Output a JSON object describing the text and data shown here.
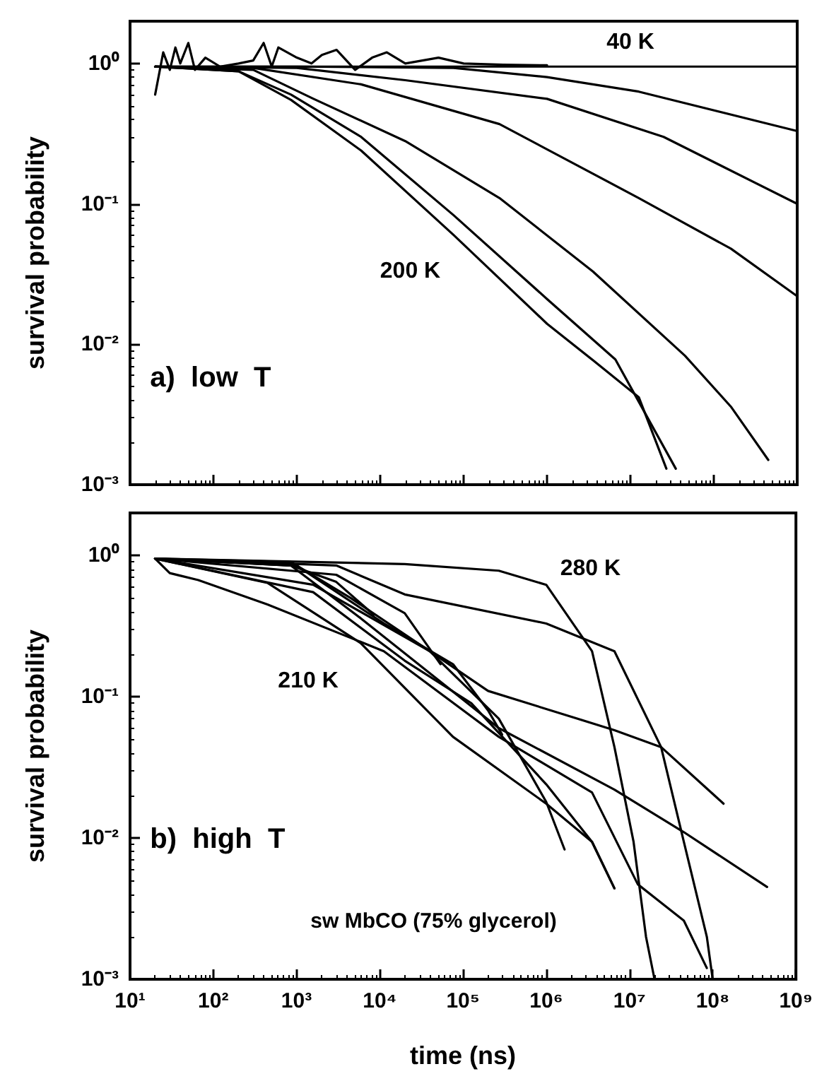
{
  "chart_data": [
    {
      "type": "line",
      "ylabel": "survival probability",
      "log": "xy",
      "grid": false,
      "marker": "none",
      "line_style": "solid",
      "tick_labels": "y",
      "xlim": [
        10,
        1000000000
      ],
      "ylim": [
        0.001,
        2
      ],
      "xticks": [
        {
          "value": 10,
          "label": null
        },
        {
          "value": 100,
          "label": null
        },
        {
          "value": 1000,
          "label": null
        },
        {
          "value": 10000,
          "label": null
        },
        {
          "value": 100000,
          "label": null
        },
        {
          "value": 1000000,
          "label": null
        },
        {
          "value": 10000000,
          "label": null
        },
        {
          "value": 100000000,
          "label": null
        },
        {
          "value": 1000000000,
          "label": null
        }
      ],
      "yticks": [
        {
          "value": 0.001,
          "label": "10⁻³"
        },
        {
          "value": 0.01,
          "label": "10⁻²"
        },
        {
          "value": 0.1,
          "label": "10⁻¹"
        },
        {
          "value": 1,
          "label": "10⁰"
        }
      ],
      "annotations": [
        "a)  low  T",
        "40 K",
        "200 K"
      ],
      "series": [
        {
          "color": "#000000",
          "x": [
            20,
            25,
            30,
            35,
            40,
            50,
            60,
            80,
            120,
            200,
            300,
            400,
            500,
            600,
            1000,
            1500,
            2000,
            3000,
            5000,
            8000,
            12000,
            20000,
            50000,
            100000,
            300000,
            1000000
          ],
          "values": [
            0.6,
            1.2,
            0.9,
            1.3,
            1.0,
            1.4,
            0.9,
            1.1,
            0.95,
            1.0,
            1.05,
            1.4,
            0.95,
            1.3,
            1.1,
            1.0,
            1.15,
            1.25,
            0.9,
            1.1,
            1.2,
            1.0,
            1.1,
            1.0,
            0.98,
            0.97
          ]
        },
        {
          "color": "#000000",
          "x": [
            20,
            1000,
            1000000,
            1000000000
          ],
          "values": [
            0.95,
            0.95,
            0.95,
            0.95
          ]
        },
        {
          "color": "#000000",
          "x": [
            20,
            1000,
            75860,
            1000000,
            12600000,
            1000000000
          ],
          "values": [
            0.95,
            0.95,
            0.93,
            0.8,
            0.63,
            0.33
          ]
        },
        {
          "color": "#000000",
          "x": [
            20,
            1000,
            19950,
            1000000,
            25000000,
            1000000000
          ],
          "values": [
            0.95,
            0.93,
            0.76,
            0.56,
            0.3,
            0.1
          ]
        },
        {
          "color": "#000000",
          "x": [
            20,
            300,
            5890,
            269200,
            12600000,
            160000000,
            1000000000
          ],
          "values": [
            0.95,
            0.93,
            0.71,
            0.37,
            0.11,
            0.048,
            0.022
          ]
        },
        {
          "color": "#000000",
          "x": [
            20,
            300,
            1585,
            19950,
            269200,
            3550000,
            45000000,
            160000000,
            450000000
          ],
          "values": [
            0.95,
            0.9,
            0.56,
            0.28,
            0.11,
            0.033,
            0.0083,
            0.0036,
            0.0015
          ]
        },
        {
          "color": "#000000",
          "x": [
            20,
            200,
            851,
            5890,
            75860,
            1000000,
            6600000,
            35000000
          ],
          "values": [
            0.95,
            0.88,
            0.6,
            0.3,
            0.083,
            0.021,
            0.0078,
            0.0013
          ]
        },
        {
          "color": "#000000",
          "x": [
            20,
            200,
            851,
            5890,
            75860,
            1000000,
            3550000,
            12600000,
            27000000
          ],
          "values": [
            0.95,
            0.88,
            0.55,
            0.24,
            0.06,
            0.014,
            0.0077,
            0.0042,
            0.0013
          ]
        }
      ]
    },
    {
      "type": "line",
      "xlabel": "time (ns)",
      "ylabel": "survival probability",
      "log": "xy",
      "grid": false,
      "marker": "none",
      "line_style": "solid",
      "xlim": [
        10,
        1000000000
      ],
      "ylim": [
        0.001,
        2
      ],
      "xticks": [
        {
          "value": 10,
          "label": "10¹"
        },
        {
          "value": 100,
          "label": "10²"
        },
        {
          "value": 1000,
          "label": "10³"
        },
        {
          "value": 10000,
          "label": "10⁴"
        },
        {
          "value": 100000,
          "label": "10⁵"
        },
        {
          "value": 1000000,
          "label": "10⁶"
        },
        {
          "value": 10000000,
          "label": "10⁷"
        },
        {
          "value": 100000000,
          "label": "10⁸"
        },
        {
          "value": 1000000000,
          "label": "10⁹"
        }
      ],
      "yticks": [
        {
          "value": 0.001,
          "label": "10⁻³"
        },
        {
          "value": 0.01,
          "label": "10⁻²"
        },
        {
          "value": 0.1,
          "label": "10⁻¹"
        },
        {
          "value": 1,
          "label": "10⁰"
        }
      ],
      "annotations": [
        "b)  high  T",
        "sw MbCO (75% glycerol)",
        "280 K",
        "210 K"
      ],
      "series": [
        {
          "color": "#000000",
          "x": [
            20,
            19950,
            269200,
            1000000,
            3550000,
            6600000,
            11200000,
            15800000,
            20000000
          ],
          "values": [
            0.95,
            0.87,
            0.78,
            0.62,
            0.21,
            0.044,
            0.0094,
            0.002,
            0.001
          ]
        },
        {
          "color": "#000000",
          "x": [
            20,
            3000,
            19950,
            1000000,
            6600000,
            24000000,
            45000000,
            85000000,
            100000000
          ],
          "values": [
            0.95,
            0.85,
            0.53,
            0.33,
            0.21,
            0.044,
            0.0094,
            0.002,
            0.001
          ]
        },
        {
          "color": "#000000",
          "x": [
            20,
            851,
            4470,
            39800,
            200000,
            6600000,
            24000000,
            135000000
          ],
          "values": [
            0.95,
            0.9,
            0.5,
            0.21,
            0.11,
            0.058,
            0.044,
            0.0175
          ]
        },
        {
          "color": "#000000",
          "x": [
            20,
            851,
            5890,
            269200,
            6600000,
            45000000,
            450000000
          ],
          "values": [
            0.95,
            0.85,
            0.36,
            0.06,
            0.022,
            0.011,
            0.0045
          ]
        },
        {
          "color": "#000000",
          "x": [
            20,
            30,
            66,
            447,
            11200,
            269200,
            3550000,
            12600000,
            45000000,
            85000000
          ],
          "values": [
            0.95,
            0.75,
            0.67,
            0.45,
            0.21,
            0.052,
            0.021,
            0.0047,
            0.0026,
            0.0012
          ]
        },
        {
          "color": "#000000",
          "x": [
            20,
            851,
            3000,
            8500
          ],
          "values": [
            0.95,
            0.85,
            0.65,
            0.38
          ]
        },
        {
          "color": "#000000",
          "x": [
            20,
            3000,
            19950,
            53700
          ],
          "values": [
            0.95,
            0.73,
            0.39,
            0.17
          ]
        },
        {
          "color": "#000000",
          "x": [
            20,
            1000,
            11200,
            75860,
            200000,
            295000
          ],
          "values": [
            0.95,
            0.85,
            0.33,
            0.17,
            0.08,
            0.054
          ]
        },
        {
          "color": "#000000",
          "x": [
            20,
            1585,
            39800,
            269200,
            1000000,
            1660000
          ],
          "values": [
            0.95,
            0.62,
            0.21,
            0.07,
            0.018,
            0.0083
          ]
        },
        {
          "color": "#000000",
          "x": [
            20,
            1585,
            19950,
            126000,
            1000000,
            3550000,
            6600000
          ],
          "values": [
            0.95,
            0.55,
            0.18,
            0.09,
            0.024,
            0.0094,
            0.0044
          ]
        },
        {
          "color": "#000000",
          "x": [
            20,
            447,
            5890,
            75860,
            1000000,
            3550000,
            6600000
          ],
          "values": [
            0.95,
            0.64,
            0.24,
            0.052,
            0.0175,
            0.0094,
            0.0044
          ]
        }
      ]
    }
  ]
}
